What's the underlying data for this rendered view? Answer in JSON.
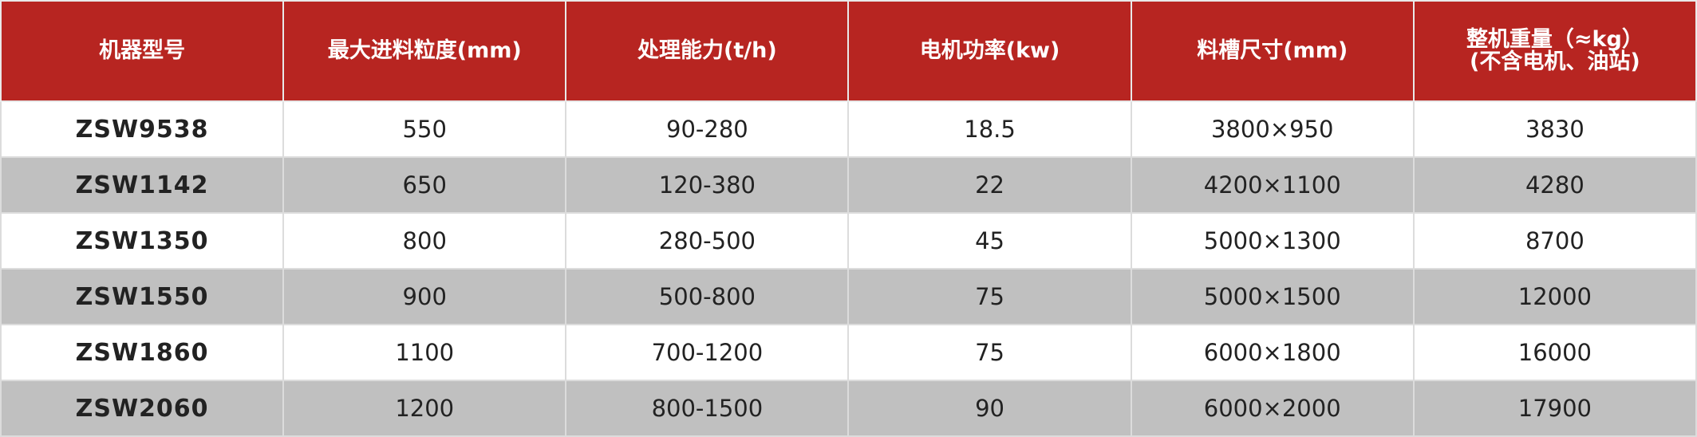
{
  "table": {
    "header": [
      "机器型号",
      "最大进料粒度(mm)",
      "处理能力(t/h)",
      "电机功率(kw)",
      "料槽尺寸(mm)",
      [
        "整机重量（≈kg）",
        "(不含电机、油站)"
      ]
    ],
    "rows": [
      [
        "ZSW9538",
        "550",
        "90-280",
        "18.5",
        "3800×950",
        "3830"
      ],
      [
        "ZSW1142",
        "650",
        "120-380",
        "22",
        "4200×1100",
        "4280"
      ],
      [
        "ZSW1350",
        "800",
        "280-500",
        "45",
        "5000×1300",
        "8700"
      ],
      [
        "ZSW1550",
        "900",
        "500-800",
        "75",
        "5000×1500",
        "12000"
      ],
      [
        "ZSW1860",
        "1100",
        "700-1200",
        "75",
        "6000×1800",
        "16000"
      ],
      [
        "ZSW2060",
        "1200",
        "800-1500",
        "90",
        "6000×2000",
        "17900"
      ]
    ]
  }
}
